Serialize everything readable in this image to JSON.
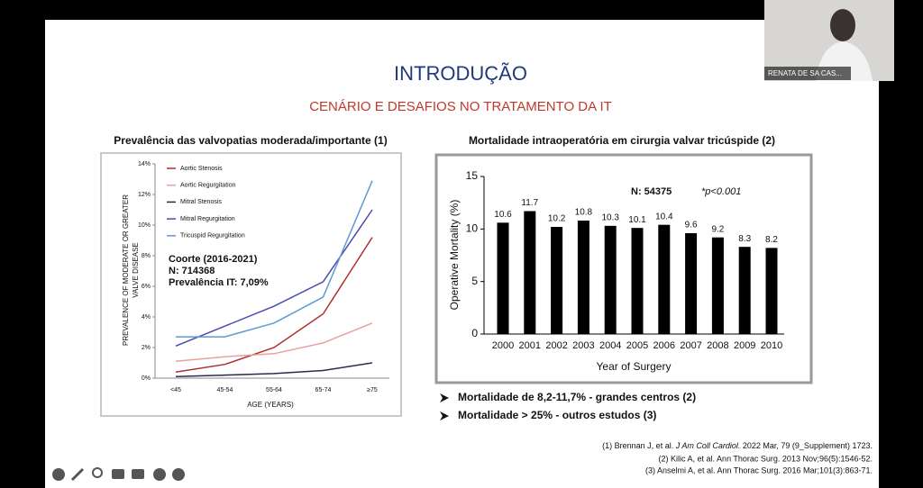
{
  "slide": {
    "title": "INTRODUÇÃO",
    "subtitle": "CENÁRIO E DESAFIOS NO TRATAMENTO DA IT",
    "bullets": [
      "Mortalidade de 8,2-11,7% - grandes centros (2)",
      "Mortalidade > 25% - outros estudos (3)"
    ],
    "references": [
      {
        "before": "(1) Brennan J, et al. ",
        "italic": "J Am Coll Cardiol.",
        "after": " 2022 Mar, 79 (9_Supplement) 1723."
      },
      {
        "before": "(2) Kilic A, et al. Ann Thorac Surg. 2013 Nov;96(5):1546-52."
      },
      {
        "before": "(3) Anselmi A, et al. Ann Thorac Surg. 2016 Mar;101(3):863-71."
      }
    ]
  },
  "webcam": {
    "name": "RENATA DE SA CAS..."
  },
  "chart_data": [
    {
      "type": "line",
      "title": "Prevalência das valvopatias moderada/importante (1)",
      "y_label": [
        "PREVALENCE OF MODERATE OR GREATER",
        "VALVE DISEASE"
      ],
      "x_label": "AGE (YEARS)",
      "categories": [
        "<45",
        "45-54",
        "55-64",
        "65-74",
        "≥75"
      ],
      "ylim": [
        0,
        14
      ],
      "yticks": [
        {
          "value": 0,
          "label": "0%"
        },
        {
          "value": 2,
          "label": "2%"
        },
        {
          "value": 4,
          "label": "4%"
        },
        {
          "value": 6,
          "label": "6%"
        },
        {
          "value": 8,
          "label": "8%"
        },
        {
          "value": 10,
          "label": "10%"
        },
        {
          "value": 12,
          "label": "12%"
        },
        {
          "value": 14,
          "label": "14%"
        }
      ],
      "legend": "top-left",
      "series": [
        {
          "name": "Aortic Stenosis",
          "color": "#b0302e",
          "values": [
            0.4,
            0.9,
            2.0,
            4.2,
            9.2
          ]
        },
        {
          "name": "Aortic Regurgitation",
          "color": "#e8a0a0",
          "values": [
            1.1,
            1.4,
            1.6,
            2.3,
            3.6
          ]
        },
        {
          "name": "Mitral Stenosis",
          "color": "#2a2a4a",
          "values": [
            0.1,
            0.2,
            0.3,
            0.5,
            1.0
          ]
        },
        {
          "name": "Mitral Regurgitation",
          "color": "#4a4ab0",
          "values": [
            2.1,
            3.4,
            4.7,
            6.3,
            11.0
          ]
        },
        {
          "name": "Tricuspid Regurgitation",
          "color": "#5b9bd5",
          "values": [
            2.7,
            2.7,
            3.6,
            5.3,
            12.9
          ]
        }
      ],
      "annotations": [
        "Coorte (2016-2021)",
        "N: 714368",
        "Prevalência IT: 7,09%"
      ]
    },
    {
      "type": "bar",
      "title": "Mortalidade intraoperatória em cirurgia valvar tricúspide (2)",
      "y_label": "Operative Mortality (%)",
      "x_label": "Year of Surgery",
      "categories": [
        "2000",
        "2001",
        "2002",
        "2003",
        "2004",
        "2005",
        "2006",
        "2007",
        "2008",
        "2009",
        "2010"
      ],
      "values": [
        10.6,
        11.7,
        10.2,
        10.8,
        10.3,
        10.1,
        10.4,
        9.6,
        9.2,
        8.3,
        8.2
      ],
      "color": "#000000",
      "ylim": [
        0,
        15
      ],
      "yticks": [
        0,
        5,
        10,
        15
      ],
      "annotations": [
        "N: 54375",
        "*p<0.001"
      ]
    }
  ]
}
